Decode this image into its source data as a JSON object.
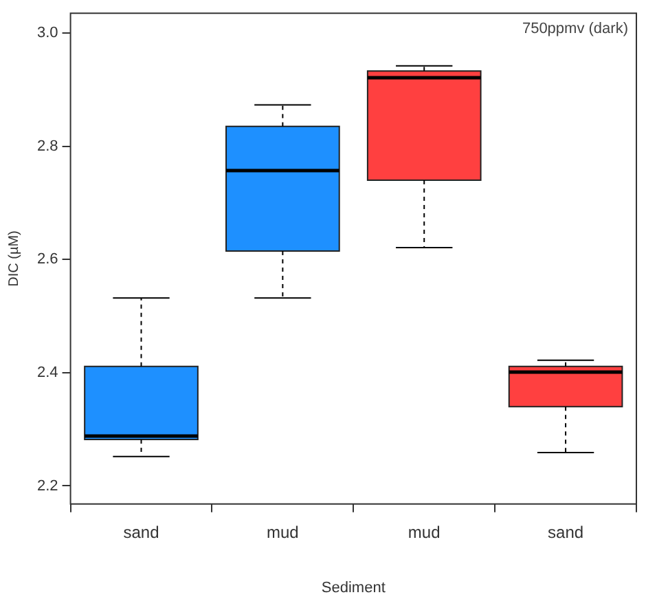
{
  "chart_data": {
    "type": "box",
    "categories": [
      "sand",
      "mud",
      "mud",
      "sand"
    ],
    "boxes": [
      {
        "low": 2.252,
        "q1": 2.282,
        "median": 2.288,
        "q3": 2.411,
        "high": 2.532
      },
      {
        "low": 2.532,
        "q1": 2.615,
        "median": 2.757,
        "q3": 2.835,
        "high": 2.873
      },
      {
        "low": 2.621,
        "q1": 2.74,
        "median": 2.921,
        "q3": 2.933,
        "high": 2.942
      },
      {
        "low": 2.259,
        "q1": 2.34,
        "median": 2.401,
        "q3": 2.411,
        "high": 2.422
      }
    ],
    "colors": [
      "#1e90ff",
      "#1e90ff",
      "#ff4040",
      "#ff4040"
    ],
    "xlabel": "Sediment",
    "ylabel": "DIC (µM)",
    "annotations": [
      "750ppmv (dark)"
    ],
    "ylim": [
      2.168,
      3.035
    ],
    "yticks": [
      2.2,
      2.4,
      2.6,
      2.8,
      {
        "value": 3,
        "label": "3.0"
      }
    ],
    "grid": false,
    "legend": false
  }
}
